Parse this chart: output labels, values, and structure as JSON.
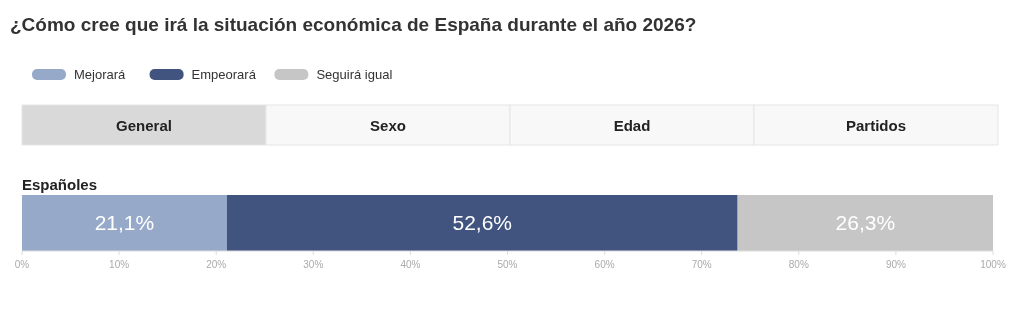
{
  "chart_data": {
    "type": "bar",
    "orientation": "horizontal",
    "stacked": true,
    "title": "¿Cómo cree que irá la situación económica de España durante el año 2026?",
    "annotations": [
      "General",
      "Sexo",
      "Edad",
      "Partidos"
    ],
    "categories": [
      "Españoles"
    ],
    "series": [
      {
        "name": "Mejorará",
        "color": "#97a9c9",
        "values": [
          21.1
        ],
        "value_labels": [
          "21,1%"
        ]
      },
      {
        "name": "Empeorará",
        "color": "#41537f",
        "values": [
          52.6
        ],
        "value_labels": [
          "52,6%"
        ]
      },
      {
        "name": "Seguirá igual",
        "color": "#c6c6c6",
        "values": [
          26.3
        ],
        "value_labels": [
          "26,3%"
        ]
      }
    ],
    "xlim": [
      0,
      100
    ],
    "xticks": [
      {
        "value": 0,
        "label": "0%"
      },
      {
        "value": 10,
        "label": "10%"
      },
      {
        "value": 20,
        "label": "20%"
      },
      {
        "value": 30,
        "label": "30%"
      },
      {
        "value": 40,
        "label": "40%"
      },
      {
        "value": 50,
        "label": "50%"
      },
      {
        "value": 60,
        "label": "60%"
      },
      {
        "value": 70,
        "label": "70%"
      },
      {
        "value": 80,
        "label": "80%"
      },
      {
        "value": 90,
        "label": "90%"
      },
      {
        "value": 100,
        "label": "100%"
      }
    ],
    "legend": "top left"
  }
}
